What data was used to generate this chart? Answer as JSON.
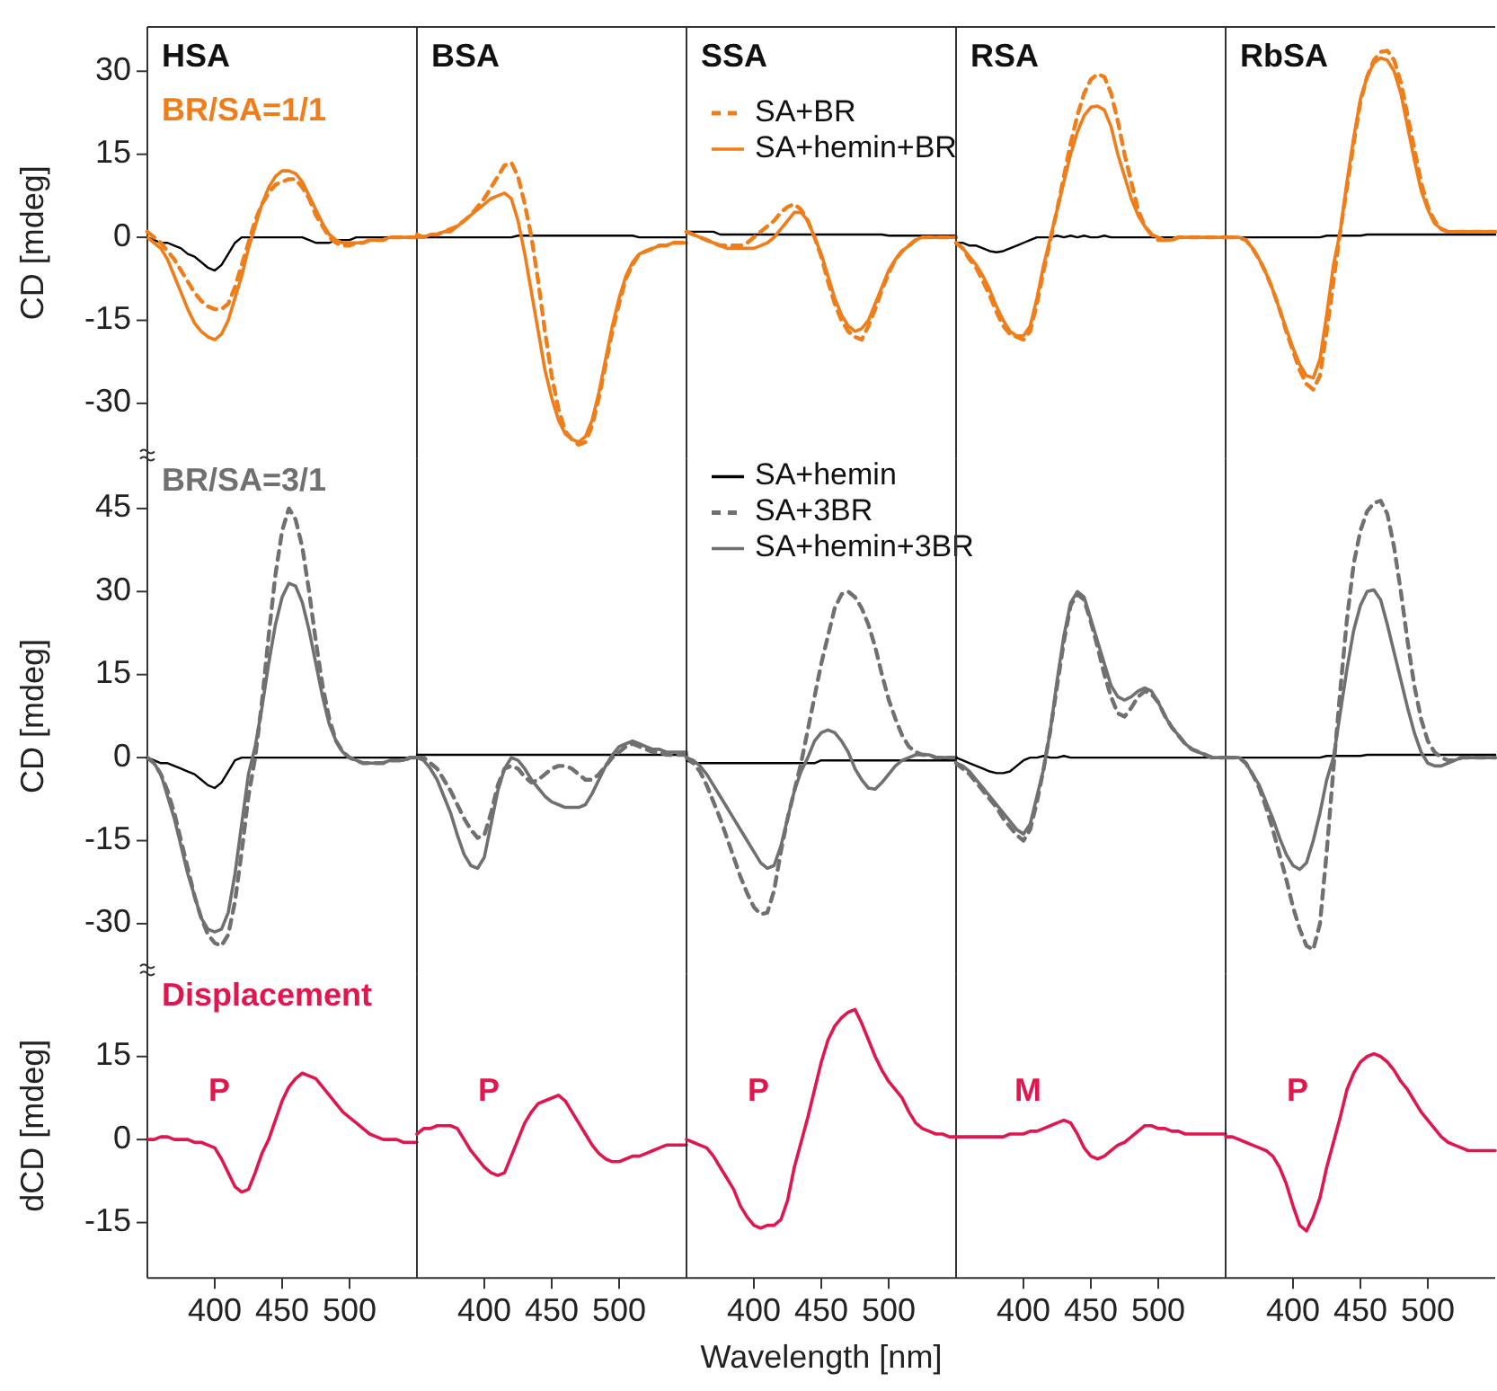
{
  "chart_data": [
    {
      "type": "line",
      "title": "HSA",
      "ylabel": "CD [mdeg]",
      "annotations": [
        "BR/SA=1/1"
      ],
      "ylim": [
        -40,
        38
      ],
      "yticks": [
        -30,
        -15,
        0,
        15,
        30
      ],
      "tick_labels": "y",
      "x": [
        350,
        355,
        360,
        365,
        370,
        375,
        380,
        385,
        390,
        395,
        400,
        405,
        410,
        415,
        420,
        425,
        430,
        435,
        440,
        445,
        450,
        455,
        460,
        465,
        470,
        475,
        480,
        485,
        490,
        495,
        500,
        505,
        510,
        515,
        520,
        525,
        530,
        535,
        540,
        545,
        550
      ],
      "series": [
        {
          "color": "#000000",
          "line_style": "solid",
          "values": [
            0,
            -0.5,
            -1,
            -1,
            -1.5,
            -2,
            -3,
            -3.5,
            -4.5,
            -5.5,
            -6,
            -5,
            -3,
            -1,
            0,
            0,
            0,
            0,
            0,
            0,
            0,
            0,
            0,
            0,
            -0.5,
            -1,
            -1,
            -1,
            -0.5,
            -0.5,
            -0.5,
            0,
            0,
            0,
            0,
            0,
            0,
            0,
            0,
            0,
            0
          ]
        },
        {
          "color": "#ef7d1a",
          "line_style": "dashed",
          "values": [
            1,
            0,
            -1,
            -2.5,
            -4,
            -6,
            -8,
            -10,
            -11.5,
            -12.5,
            -13,
            -13,
            -12,
            -9,
            -5,
            -1,
            3,
            6,
            8,
            9.5,
            10,
            10.5,
            10.5,
            9,
            7,
            4,
            2,
            0,
            -1,
            -1.5,
            -1.5,
            -1,
            -1,
            -0.5,
            -0.5,
            -0.5,
            0,
            0,
            0,
            0,
            0
          ]
        },
        {
          "color": "#ef7d1a",
          "line_style": "solid",
          "values": [
            0,
            -1,
            -2,
            -4,
            -7,
            -10,
            -13,
            -15.5,
            -17,
            -18,
            -18.5,
            -17.5,
            -15,
            -11,
            -7,
            -2,
            2,
            6,
            9,
            11,
            12,
            12,
            11.5,
            10,
            7.5,
            5,
            2.5,
            0.5,
            -0.5,
            -1,
            -1,
            -1,
            -1,
            -0.5,
            -0.5,
            -0.5,
            0,
            0,
            0,
            0,
            0
          ]
        }
      ]
    },
    {
      "type": "line",
      "title": "BSA",
      "ylim": [
        -40,
        38
      ],
      "tick_labels": false,
      "x": [
        350,
        355,
        360,
        365,
        370,
        375,
        380,
        385,
        390,
        395,
        400,
        405,
        410,
        415,
        420,
        425,
        430,
        435,
        440,
        445,
        450,
        455,
        460,
        465,
        470,
        475,
        480,
        485,
        490,
        495,
        500,
        505,
        510,
        515,
        520,
        525,
        530,
        535,
        540,
        545,
        550
      ],
      "series": [
        {
          "color": "#000000",
          "line_style": "solid",
          "values": [
            0,
            0,
            0,
            0,
            0,
            0,
            0,
            0,
            0,
            0,
            0,
            0,
            0,
            0,
            0,
            0.3,
            0.3,
            0.3,
            0.3,
            0.3,
            0.3,
            0.3,
            0.3,
            0.3,
            0.3,
            0.3,
            0.3,
            0.3,
            0.3,
            0.3,
            0.3,
            0.3,
            0.3,
            0,
            0,
            0,
            0,
            0,
            0,
            0,
            0
          ]
        },
        {
          "color": "#ef7d1a",
          "line_style": "dashed",
          "values": [
            0.5,
            0,
            0.5,
            0.5,
            1,
            1.5,
            2,
            3,
            4,
            5.5,
            7,
            9,
            11,
            13,
            13.5,
            11,
            6,
            0,
            -8,
            -17,
            -25,
            -31,
            -35,
            -36.5,
            -37.5,
            -37,
            -34,
            -29,
            -23,
            -17,
            -12,
            -7.5,
            -5,
            -3,
            -2.5,
            -2,
            -1.5,
            -1.5,
            -1,
            -1,
            -1
          ]
        },
        {
          "color": "#ef7d1a",
          "line_style": "solid",
          "values": [
            0,
            0,
            0.5,
            0.5,
            1,
            1,
            2,
            3,
            4,
            5,
            6,
            7,
            7.5,
            8,
            7,
            3,
            -3,
            -10,
            -17,
            -24,
            -29,
            -33,
            -35.5,
            -36.5,
            -37,
            -36,
            -33,
            -28,
            -22,
            -16,
            -11,
            -7,
            -4.5,
            -3,
            -2.5,
            -2,
            -1.5,
            -1.5,
            -1,
            -1,
            -1
          ]
        }
      ]
    },
    {
      "type": "line",
      "title": "SSA",
      "legend": "top right",
      "ylim": [
        -40,
        38
      ],
      "tick_labels": false,
      "x": [
        350,
        355,
        360,
        365,
        370,
        375,
        380,
        385,
        390,
        395,
        400,
        405,
        410,
        415,
        420,
        425,
        430,
        435,
        440,
        445,
        450,
        455,
        460,
        465,
        470,
        475,
        480,
        485,
        490,
        495,
        500,
        505,
        510,
        515,
        520,
        525,
        530,
        535,
        540,
        545,
        550
      ],
      "series": [
        {
          "color": "#000000",
          "line_style": "solid",
          "values": [
            1,
            1,
            1,
            1,
            1,
            0.5,
            0.5,
            0.5,
            0.5,
            0.5,
            0.5,
            0.5,
            0.5,
            0.5,
            0.5,
            0.5,
            0.5,
            0.5,
            0.5,
            0.5,
            0.5,
            0.5,
            0.5,
            0.5,
            0.5,
            0.5,
            0.5,
            0.5,
            0.5,
            0.5,
            0.3,
            0.3,
            0.3,
            0.3,
            0.3,
            0.3,
            0.3,
            0.3,
            0.3,
            0.3,
            0.3
          ]
        },
        {
          "name": "SA+BR",
          "color": "#ef7d1a",
          "line_style": "dashed",
          "values": [
            1,
            0.5,
            0,
            -0.5,
            -1,
            -1.5,
            -1.5,
            -1.5,
            -1.5,
            -1,
            0,
            1,
            2,
            3,
            4.5,
            5.5,
            6,
            5,
            3,
            0,
            -3.5,
            -8,
            -12,
            -15,
            -17,
            -18,
            -18.5,
            -16,
            -13,
            -9.5,
            -6.5,
            -4,
            -2.5,
            -1.5,
            -0.5,
            0,
            0,
            0,
            0,
            0,
            0
          ]
        },
        {
          "name": "SA+hemin+BR",
          "color": "#ef7d1a",
          "line_style": "solid",
          "values": [
            1,
            0.5,
            0,
            -0.5,
            -1,
            -1.5,
            -2,
            -2,
            -2,
            -2,
            -2,
            -1.5,
            -1,
            0,
            1.5,
            3,
            4.5,
            4.5,
            3,
            0,
            -3,
            -7,
            -11,
            -14,
            -16,
            -17,
            -16.5,
            -15,
            -12,
            -9,
            -6,
            -4,
            -2.5,
            -1.5,
            -0.5,
            0,
            0,
            0,
            0,
            0,
            0
          ]
        }
      ]
    },
    {
      "type": "line",
      "title": "RSA",
      "ylim": [
        -40,
        38
      ],
      "tick_labels": false,
      "x": [
        350,
        355,
        360,
        365,
        370,
        375,
        380,
        385,
        390,
        395,
        400,
        405,
        410,
        415,
        420,
        425,
        430,
        435,
        440,
        445,
        450,
        455,
        460,
        465,
        470,
        475,
        480,
        485,
        490,
        495,
        500,
        505,
        510,
        515,
        520,
        525,
        530,
        535,
        540,
        545,
        550
      ],
      "series": [
        {
          "color": "#000000",
          "line_style": "solid",
          "values": [
            -1,
            -1,
            -1.5,
            -1.5,
            -2,
            -2.5,
            -2.7,
            -2.5,
            -2,
            -1.5,
            -1,
            -0.5,
            0,
            0,
            0,
            0.3,
            0,
            0.3,
            0,
            0.3,
            0,
            0,
            0.3,
            0,
            0,
            0,
            0,
            0,
            0,
            0,
            0,
            0,
            0,
            0,
            0,
            0,
            0,
            0,
            0,
            0,
            0
          ]
        },
        {
          "color": "#ef7d1a",
          "line_style": "dashed",
          "values": [
            -1,
            -2,
            -4,
            -5.5,
            -8,
            -10.5,
            -13.5,
            -16,
            -17.5,
            -18,
            -18.5,
            -17,
            -12,
            -6,
            -0.5,
            5,
            11,
            17,
            22,
            26,
            28.5,
            29.5,
            29,
            26,
            21,
            15,
            10,
            5,
            2,
            0.5,
            -0.5,
            -0.5,
            -0.5,
            0,
            0,
            0,
            0,
            0,
            0,
            0,
            0
          ]
        },
        {
          "color": "#ef7d1a",
          "line_style": "solid",
          "values": [
            -1,
            -2,
            -3.5,
            -5,
            -7,
            -9.5,
            -12.5,
            -15,
            -17,
            -17.8,
            -17.8,
            -16,
            -11,
            -5,
            0,
            5,
            10,
            15,
            19,
            22,
            23.5,
            23.7,
            23,
            20,
            15,
            11,
            7,
            4,
            2,
            0.5,
            0,
            -0.5,
            -0.5,
            0,
            0,
            0,
            0,
            0,
            0,
            0,
            0
          ]
        }
      ]
    },
    {
      "type": "line",
      "title": "RbSA",
      "ylim": [
        -40,
        38
      ],
      "tick_labels": false,
      "x": [
        350,
        355,
        360,
        365,
        370,
        375,
        380,
        385,
        390,
        395,
        400,
        405,
        410,
        415,
        420,
        425,
        430,
        435,
        440,
        445,
        450,
        455,
        460,
        465,
        470,
        475,
        480,
        485,
        490,
        495,
        500,
        505,
        510,
        515,
        520,
        525,
        530,
        535,
        540,
        545,
        550
      ],
      "series": [
        {
          "color": "#000000",
          "line_style": "solid",
          "values": [
            0,
            0,
            0,
            0,
            0,
            0,
            0,
            0,
            0,
            0,
            0,
            0,
            0,
            0,
            0,
            0.3,
            0.3,
            0.3,
            0.3,
            0.3,
            0.3,
            0.5,
            0.5,
            0.5,
            0.5,
            0.5,
            0.5,
            0.5,
            0.5,
            0.5,
            0.5,
            0.5,
            0.5,
            0.5,
            0.5,
            0.5,
            0.5,
            0.5,
            0.5,
            0.5,
            0.5
          ]
        },
        {
          "color": "#ef7d1a",
          "line_style": "dashed",
          "values": [
            0,
            0,
            0,
            -0.5,
            -2,
            -4,
            -6.5,
            -9.5,
            -13,
            -17,
            -20.5,
            -24,
            -26.5,
            -27.5,
            -25,
            -17,
            -8,
            1,
            9,
            17,
            24.5,
            29,
            32,
            33.5,
            33.7,
            32,
            28,
            22,
            16,
            10,
            5.5,
            3,
            1.5,
            1,
            1,
            1,
            1,
            1,
            1,
            1,
            1
          ]
        },
        {
          "color": "#ef7d1a",
          "line_style": "solid",
          "values": [
            0,
            0,
            0,
            -0.5,
            -2,
            -4,
            -6.5,
            -9.5,
            -13,
            -16.5,
            -20,
            -23,
            -25,
            -25.4,
            -22,
            -14,
            -5,
            1,
            10,
            18,
            25,
            29,
            31.5,
            32.4,
            32,
            30,
            26,
            20,
            14,
            8.5,
            5,
            2.5,
            1.5,
            1,
            1,
            1,
            1,
            1,
            1,
            1,
            1
          ]
        }
      ]
    },
    {
      "type": "line",
      "ylabel": "CD [mdeg]",
      "annotations": [
        "BR/SA=3/1"
      ],
      "ylim": [
        -39,
        54
      ],
      "yticks": [
        -30,
        -15,
        0,
        15,
        30,
        45
      ],
      "tick_labels": "y",
      "x": [
        350,
        355,
        360,
        365,
        370,
        375,
        380,
        385,
        390,
        395,
        400,
        405,
        410,
        415,
        420,
        425,
        430,
        435,
        440,
        445,
        450,
        455,
        460,
        465,
        470,
        475,
        480,
        485,
        490,
        495,
        500,
        505,
        510,
        515,
        520,
        525,
        530,
        535,
        540,
        545,
        550
      ],
      "series": [
        {
          "color": "#000000",
          "line_style": "solid",
          "values": [
            0,
            -0.5,
            -1,
            -1,
            -1.5,
            -2,
            -2.5,
            -3,
            -4,
            -5,
            -5.5,
            -4.5,
            -2.5,
            -0.5,
            0,
            0,
            0,
            0,
            0,
            0,
            0,
            0,
            0,
            0,
            0,
            0,
            0,
            0,
            0,
            0,
            0,
            0,
            0,
            0,
            0,
            0,
            0,
            0,
            0,
            0,
            0
          ]
        },
        {
          "color": "#707070",
          "line_style": "dashed",
          "values": [
            0,
            -1,
            -3,
            -6,
            -10,
            -15,
            -20,
            -25,
            -29,
            -32,
            -33.5,
            -34,
            -32,
            -26,
            -17,
            -7,
            0,
            10,
            22,
            33,
            41,
            45,
            43,
            38,
            30,
            21,
            13,
            7,
            3,
            1,
            0,
            -0.5,
            -1,
            -1,
            -1,
            -1,
            -0.5,
            -0.5,
            -0.5,
            0,
            0
          ]
        },
        {
          "color": "#707070",
          "line_style": "solid",
          "values": [
            0,
            -1,
            -3,
            -7,
            -11,
            -16,
            -21,
            -25,
            -29,
            -31,
            -31.5,
            -31,
            -28,
            -21,
            -12,
            -3,
            2,
            9,
            17,
            24,
            29,
            31.5,
            31,
            28,
            23,
            17,
            11,
            6,
            3,
            1,
            0,
            -0.5,
            -1,
            -1,
            -1,
            -1,
            -0.5,
            -0.5,
            -0.5,
            0,
            0
          ]
        }
      ]
    },
    {
      "type": "line",
      "ylim": [
        -39,
        54
      ],
      "tick_labels": false,
      "x": [
        350,
        355,
        360,
        365,
        370,
        375,
        380,
        385,
        390,
        395,
        400,
        405,
        410,
        415,
        420,
        425,
        430,
        435,
        440,
        445,
        450,
        455,
        460,
        465,
        470,
        475,
        480,
        485,
        490,
        495,
        500,
        505,
        510,
        515,
        520,
        525,
        530,
        535,
        540,
        545,
        550
      ],
      "series": [
        {
          "color": "#000000",
          "line_style": "solid",
          "values": [
            0.5,
            0.5,
            0.5,
            0.5,
            0.5,
            0.5,
            0.5,
            0.5,
            0.5,
            0.5,
            0.5,
            0.5,
            0.5,
            0.5,
            0.5,
            0.5,
            0.5,
            0.5,
            0.5,
            0.5,
            0.5,
            0.5,
            0.5,
            0.5,
            0.5,
            0.5,
            0.5,
            0.5,
            0.5,
            0.5,
            0.5,
            0.5,
            0.5,
            0.5,
            0.5,
            0.5,
            0.5,
            0.5,
            0.5,
            0.5,
            0.5
          ]
        },
        {
          "color": "#707070",
          "line_style": "dashed",
          "values": [
            0,
            0,
            -1,
            -2,
            -4,
            -6,
            -8.5,
            -11,
            -13,
            -14.5,
            -14,
            -10,
            -5,
            -2,
            -1.5,
            -2,
            -3.5,
            -4.5,
            -4,
            -3,
            -2,
            -1.5,
            -1.5,
            -2,
            -3,
            -4,
            -4,
            -3,
            -1.5,
            0,
            1,
            2,
            2.5,
            2,
            1.5,
            1,
            1,
            0.5,
            0.5,
            0.5,
            0.5
          ]
        },
        {
          "color": "#707070",
          "line_style": "solid",
          "values": [
            0,
            -0.5,
            -2,
            -4,
            -7,
            -10,
            -14,
            -17.5,
            -19.5,
            -20,
            -18,
            -12,
            -6,
            -2,
            0,
            -0.5,
            -2,
            -4,
            -5.5,
            -7,
            -8,
            -8.5,
            -9,
            -9,
            -9,
            -8.5,
            -6.5,
            -4,
            -1.5,
            0.5,
            2,
            2.5,
            3,
            2.5,
            2,
            1.5,
            1.5,
            1,
            1,
            1,
            1
          ]
        }
      ]
    },
    {
      "type": "line",
      "legend": "top right",
      "ylim": [
        -39,
        54
      ],
      "tick_labels": false,
      "x": [
        350,
        355,
        360,
        365,
        370,
        375,
        380,
        385,
        390,
        395,
        400,
        405,
        410,
        415,
        420,
        425,
        430,
        435,
        440,
        445,
        450,
        455,
        460,
        465,
        470,
        475,
        480,
        485,
        490,
        495,
        500,
        505,
        510,
        515,
        520,
        525,
        530,
        535,
        540,
        545,
        550
      ],
      "series": [
        {
          "name": "SA+hemin",
          "color": "#000000",
          "line_style": "solid",
          "values": [
            -0.5,
            -1,
            -1,
            -1,
            -1,
            -1,
            -1,
            -1,
            -1,
            -1,
            -1,
            -1,
            -1,
            -1,
            -1,
            -1,
            -1,
            -1,
            -1,
            -1,
            -0.5,
            -0.5,
            -0.5,
            -0.5,
            -0.5,
            -0.5,
            -0.5,
            -0.5,
            -0.5,
            -0.5,
            -0.5,
            -0.5,
            -0.5,
            -0.5,
            -0.5,
            -0.5,
            -0.5,
            -0.5,
            -0.5,
            -0.5,
            -0.5
          ]
        },
        {
          "name": "SA+3BR",
          "color": "#707070",
          "line_style": "dashed",
          "values": [
            0,
            -1,
            -2.5,
            -5,
            -8,
            -11,
            -14.5,
            -18,
            -21.5,
            -24.5,
            -27,
            -28.3,
            -28,
            -24,
            -17,
            -11,
            -6,
            -1,
            5,
            11,
            17,
            22,
            27,
            29.5,
            30,
            29,
            27,
            24,
            20,
            15,
            10.5,
            7,
            4,
            2,
            1,
            0.5,
            0.5,
            0,
            0,
            0,
            0
          ]
        },
        {
          "name": "SA+hemin+3BR",
          "color": "#707070",
          "line_style": "solid",
          "values": [
            0,
            -0.5,
            -1.5,
            -3,
            -5,
            -7,
            -9,
            -11,
            -13,
            -15,
            -17,
            -19,
            -20,
            -19.5,
            -16,
            -11,
            -6,
            -2.5,
            0,
            3,
            4.5,
            5,
            4.5,
            3,
            1,
            -2,
            -4,
            -5.5,
            -5.7,
            -4.5,
            -3,
            -1.5,
            -0.5,
            0,
            0.5,
            0.5,
            0.5,
            0,
            0,
            0,
            0
          ]
        }
      ]
    },
    {
      "type": "line",
      "ylim": [
        -39,
        54
      ],
      "tick_labels": false,
      "x": [
        350,
        355,
        360,
        365,
        370,
        375,
        380,
        385,
        390,
        395,
        400,
        405,
        410,
        415,
        420,
        425,
        430,
        435,
        440,
        445,
        450,
        455,
        460,
        465,
        470,
        475,
        480,
        485,
        490,
        495,
        500,
        505,
        510,
        515,
        520,
        525,
        530,
        535,
        540,
        545,
        550
      ],
      "series": [
        {
          "color": "#000000",
          "line_style": "solid",
          "values": [
            0,
            -0.5,
            -1,
            -1.5,
            -2,
            -2.5,
            -2.8,
            -2.8,
            -2.5,
            -1.5,
            -0.5,
            0,
            0,
            0.3,
            0,
            0,
            0.3,
            0,
            0,
            0,
            0,
            0,
            0,
            0,
            0,
            0,
            0,
            0,
            0,
            0,
            0,
            0,
            0,
            0,
            0,
            0,
            0,
            0,
            0,
            0,
            0
          ]
        },
        {
          "color": "#707070",
          "line_style": "dashed",
          "values": [
            -1,
            -2,
            -3,
            -4.5,
            -6,
            -7.5,
            -9,
            -11,
            -12.5,
            -14,
            -15,
            -13,
            -8,
            -2,
            5,
            13,
            21,
            27.5,
            29.5,
            28.5,
            24.5,
            20,
            15,
            11,
            8,
            7.4,
            9,
            11,
            12,
            11.5,
            10,
            7.5,
            5.5,
            4,
            2.5,
            1.5,
            1,
            0.5,
            0,
            0,
            0
          ]
        },
        {
          "color": "#707070",
          "line_style": "solid",
          "values": [
            -1,
            -1.5,
            -2.5,
            -4,
            -5.5,
            -7,
            -8.5,
            -10,
            -11.5,
            -13,
            -13.8,
            -12,
            -7,
            -2,
            5,
            14,
            22,
            28,
            30,
            29,
            25,
            21,
            17,
            13,
            11,
            10.4,
            11,
            12,
            12.6,
            12,
            10,
            7.5,
            5.5,
            4,
            2.5,
            1.5,
            1,
            0.5,
            0,
            0,
            0
          ]
        }
      ]
    },
    {
      "type": "line",
      "ylim": [
        -39,
        54
      ],
      "tick_labels": false,
      "x": [
        350,
        355,
        360,
        365,
        370,
        375,
        380,
        385,
        390,
        395,
        400,
        405,
        410,
        415,
        420,
        425,
        430,
        435,
        440,
        445,
        450,
        455,
        460,
        465,
        470,
        475,
        480,
        485,
        490,
        495,
        500,
        505,
        510,
        515,
        520,
        525,
        530,
        535,
        540,
        545,
        550
      ],
      "series": [
        {
          "color": "#000000",
          "line_style": "solid",
          "values": [
            0,
            0,
            0,
            0,
            0,
            0,
            0,
            0,
            0,
            0,
            0,
            0,
            0,
            0,
            0,
            0.3,
            0.3,
            0.3,
            0.3,
            0.3,
            0.3,
            0.5,
            0.5,
            0.5,
            0.5,
            0.5,
            0.5,
            0.5,
            0.5,
            0.5,
            0.5,
            0.5,
            0.5,
            0.5,
            0.5,
            0.5,
            0.5,
            0.5,
            0.5,
            0.5,
            0.5
          ]
        },
        {
          "color": "#707070",
          "line_style": "dashed",
          "values": [
            0,
            0,
            0,
            -1,
            -3,
            -5.5,
            -9,
            -13,
            -17.5,
            -22,
            -27,
            -31,
            -34,
            -34.7,
            -30,
            -17,
            -2,
            12,
            25,
            35,
            41,
            44.5,
            46,
            46.4,
            44,
            38,
            30,
            21,
            13,
            7,
            3,
            1,
            0,
            -0.5,
            -0.5,
            0,
            0,
            0,
            0,
            0,
            0
          ]
        },
        {
          "color": "#707070",
          "line_style": "solid",
          "values": [
            0,
            0,
            0,
            -1,
            -3,
            -5,
            -8,
            -11,
            -14.5,
            -17.5,
            -19.5,
            -20.2,
            -19,
            -15,
            -10,
            -4,
            0,
            8,
            16,
            23,
            27.5,
            30,
            30.3,
            28.5,
            24,
            19,
            14,
            9,
            4.5,
            1,
            -1,
            -1.5,
            -1.5,
            -1,
            -0.5,
            0,
            0,
            0,
            0,
            0,
            0
          ]
        }
      ]
    },
    {
      "type": "line",
      "ylabel": "dCD [mdeg]",
      "annotations": [
        "Displacement",
        "P"
      ],
      "xlim": [
        350,
        550
      ],
      "ylim": [
        -25,
        30
      ],
      "xticks": [
        400,
        450,
        500
      ],
      "yticks": [
        -15,
        0,
        15
      ],
      "x": [
        350,
        355,
        360,
        365,
        370,
        375,
        380,
        385,
        390,
        395,
        400,
        405,
        410,
        415,
        420,
        425,
        430,
        435,
        440,
        445,
        450,
        455,
        460,
        465,
        470,
        475,
        480,
        485,
        490,
        495,
        500,
        505,
        510,
        515,
        520,
        525,
        530,
        535,
        540,
        545,
        550
      ],
      "series": [
        {
          "color": "#e0174f",
          "line_style": "solid",
          "values": [
            0,
            0,
            0.5,
            0.5,
            0,
            0,
            0,
            -0.5,
            -0.5,
            -1,
            -1.5,
            -3.5,
            -6,
            -8.5,
            -9.5,
            -9,
            -6,
            -2.5,
            0,
            3.5,
            7,
            9.5,
            11,
            12,
            11.5,
            11,
            9.5,
            8,
            6.5,
            5,
            4,
            3,
            2,
            1,
            0.5,
            0,
            0,
            0,
            -0.5,
            -0.5,
            -0.5
          ]
        }
      ]
    },
    {
      "type": "line",
      "annotations": [
        "P"
      ],
      "xlim": [
        350,
        550
      ],
      "ylim": [
        -25,
        30
      ],
      "xticks": [
        400,
        450,
        500
      ],
      "tick_labels": "x",
      "x": [
        350,
        355,
        360,
        365,
        370,
        375,
        380,
        385,
        390,
        395,
        400,
        405,
        410,
        415,
        420,
        425,
        430,
        435,
        440,
        445,
        450,
        455,
        460,
        465,
        470,
        475,
        480,
        485,
        490,
        495,
        500,
        505,
        510,
        515,
        520,
        525,
        530,
        535,
        540,
        545,
        550
      ],
      "series": [
        {
          "color": "#e0174f",
          "line_style": "solid",
          "values": [
            1,
            2,
            2,
            2.5,
            2.5,
            2.5,
            2,
            0,
            -2,
            -3.5,
            -5,
            -6,
            -6.5,
            -6,
            -3,
            0,
            3,
            5,
            6.5,
            7,
            7.5,
            8,
            7,
            5,
            3,
            1,
            -1,
            -2.5,
            -3.5,
            -4,
            -4,
            -3.5,
            -3,
            -3,
            -2.5,
            -2,
            -1.5,
            -1,
            -1,
            -1,
            -1
          ]
        }
      ]
    },
    {
      "type": "line",
      "xlabel": "Wavelength [nm]",
      "annotations": [
        "P"
      ],
      "xlim": [
        350,
        550
      ],
      "ylim": [
        -25,
        30
      ],
      "xticks": [
        400,
        450,
        500
      ],
      "tick_labels": "x",
      "x": [
        350,
        355,
        360,
        365,
        370,
        375,
        380,
        385,
        390,
        395,
        400,
        405,
        410,
        415,
        420,
        425,
        430,
        435,
        440,
        445,
        450,
        455,
        460,
        465,
        470,
        475,
        480,
        485,
        490,
        495,
        500,
        505,
        510,
        515,
        520,
        525,
        530,
        535,
        540,
        545,
        550
      ],
      "series": [
        {
          "color": "#e0174f",
          "line_style": "solid",
          "values": [
            0,
            -0.5,
            -1,
            -1.5,
            -3,
            -5,
            -7,
            -9,
            -12,
            -14,
            -15.5,
            -16,
            -15.5,
            -15.5,
            -14.5,
            -11,
            -5,
            -0.5,
            4,
            9,
            14,
            18,
            20.5,
            22,
            23,
            23.5,
            21,
            18,
            15,
            12.5,
            10.5,
            9,
            7.5,
            5,
            3,
            2,
            1.5,
            1,
            1,
            0.5,
            0.5
          ]
        }
      ]
    },
    {
      "type": "line",
      "annotations": [
        "M"
      ],
      "xlim": [
        350,
        550
      ],
      "ylim": [
        -25,
        30
      ],
      "xticks": [
        400,
        450,
        500
      ],
      "tick_labels": "x",
      "x": [
        350,
        355,
        360,
        365,
        370,
        375,
        380,
        385,
        390,
        395,
        400,
        405,
        410,
        415,
        420,
        425,
        430,
        435,
        440,
        445,
        450,
        455,
        460,
        465,
        470,
        475,
        480,
        485,
        490,
        495,
        500,
        505,
        510,
        515,
        520,
        525,
        530,
        535,
        540,
        545,
        550
      ],
      "series": [
        {
          "color": "#e0174f",
          "line_style": "solid",
          "values": [
            0.5,
            0.5,
            0.5,
            0.5,
            0.5,
            0.5,
            0.5,
            0.5,
            1,
            1,
            1,
            1.5,
            1.5,
            2,
            2.5,
            3,
            3.5,
            3,
            1,
            -1.5,
            -3,
            -3.5,
            -3,
            -2,
            -1,
            -0.5,
            0.5,
            1.5,
            2.5,
            2.5,
            2,
            2,
            1.5,
            1.5,
            1,
            1,
            1,
            1,
            1,
            1,
            1
          ]
        }
      ]
    },
    {
      "type": "line",
      "annotations": [
        "P"
      ],
      "xlim": [
        350,
        550
      ],
      "ylim": [
        -25,
        30
      ],
      "xticks": [
        400,
        450,
        500
      ],
      "tick_labels": "x",
      "x": [
        350,
        355,
        360,
        365,
        370,
        375,
        380,
        385,
        390,
        395,
        400,
        405,
        410,
        415,
        420,
        425,
        430,
        435,
        440,
        445,
        450,
        455,
        460,
        465,
        470,
        475,
        480,
        485,
        490,
        495,
        500,
        505,
        510,
        515,
        520,
        525,
        530,
        535,
        540,
        545,
        550
      ],
      "series": [
        {
          "color": "#e0174f",
          "line_style": "solid",
          "values": [
            0.5,
            0.5,
            0,
            -0.5,
            -1,
            -1.5,
            -2,
            -3,
            -5,
            -8,
            -12,
            -15.5,
            -16.5,
            -14,
            -10.5,
            -5,
            -0.5,
            4,
            9,
            12,
            14,
            15,
            15.5,
            15,
            14,
            12.5,
            10.5,
            9,
            7,
            5,
            3.5,
            2,
            0.5,
            -0.5,
            -1,
            -1.5,
            -2,
            -2,
            -2,
            -2,
            -2
          ]
        }
      ]
    }
  ]
}
